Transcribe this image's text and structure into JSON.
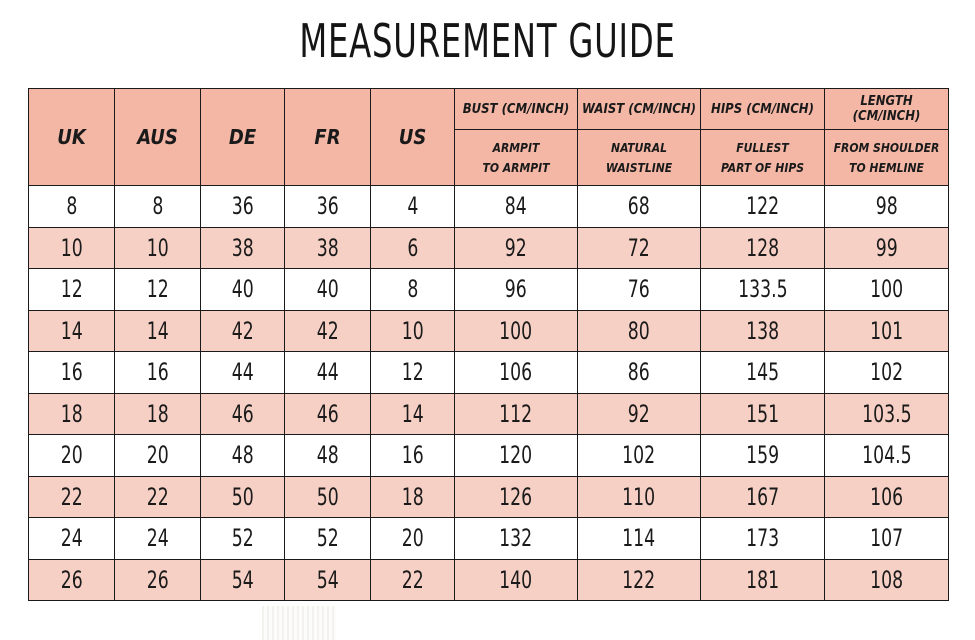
{
  "title": "MEASUREMENT GUIDE",
  "headers": {
    "uk": "UK",
    "aus": "AUS",
    "de": "DE",
    "fr": "FR",
    "us": "US",
    "bust": "BUST (CM/INCH)",
    "waist": "WAIST (CM/INCH)",
    "hips": "HIPS (CM/INCH)",
    "length": "LENGTH (CM/INCH)",
    "bust_sub_1": "ARMPIT",
    "bust_sub_2": "TO ARMPIT",
    "waist_sub_1": "NATURAL",
    "waist_sub_2": "WAISTLINE",
    "hips_sub_1": "FULLEST",
    "hips_sub_2": "PART OF HIPS",
    "length_sub_1": "FROM SHOULDER",
    "length_sub_2": "TO HEMLINE"
  },
  "rows": [
    [
      "8",
      "8",
      "36",
      "36",
      "4",
      "84",
      "68",
      "122",
      "98"
    ],
    [
      "10",
      "10",
      "38",
      "38",
      "6",
      "92",
      "72",
      "128",
      "99"
    ],
    [
      "12",
      "12",
      "40",
      "40",
      "8",
      "96",
      "76",
      "133.5",
      "100"
    ],
    [
      "14",
      "14",
      "42",
      "42",
      "10",
      "100",
      "80",
      "138",
      "101"
    ],
    [
      "16",
      "16",
      "44",
      "44",
      "12",
      "106",
      "86",
      "145",
      "102"
    ],
    [
      "18",
      "18",
      "46",
      "46",
      "14",
      "112",
      "92",
      "151",
      "103.5"
    ],
    [
      "20",
      "20",
      "48",
      "48",
      "16",
      "120",
      "102",
      "159",
      "104.5"
    ],
    [
      "22",
      "22",
      "50",
      "50",
      "18",
      "126",
      "110",
      "167",
      "106"
    ],
    [
      "24",
      "24",
      "52",
      "52",
      "20",
      "132",
      "114",
      "173",
      "107"
    ],
    [
      "26",
      "26",
      "54",
      "54",
      "22",
      "140",
      "122",
      "181",
      "108"
    ]
  ],
  "colors": {
    "header_bg": "#f4b7a6",
    "stripe_bg": "#f7d0c5",
    "border": "#1a1a1a"
  }
}
